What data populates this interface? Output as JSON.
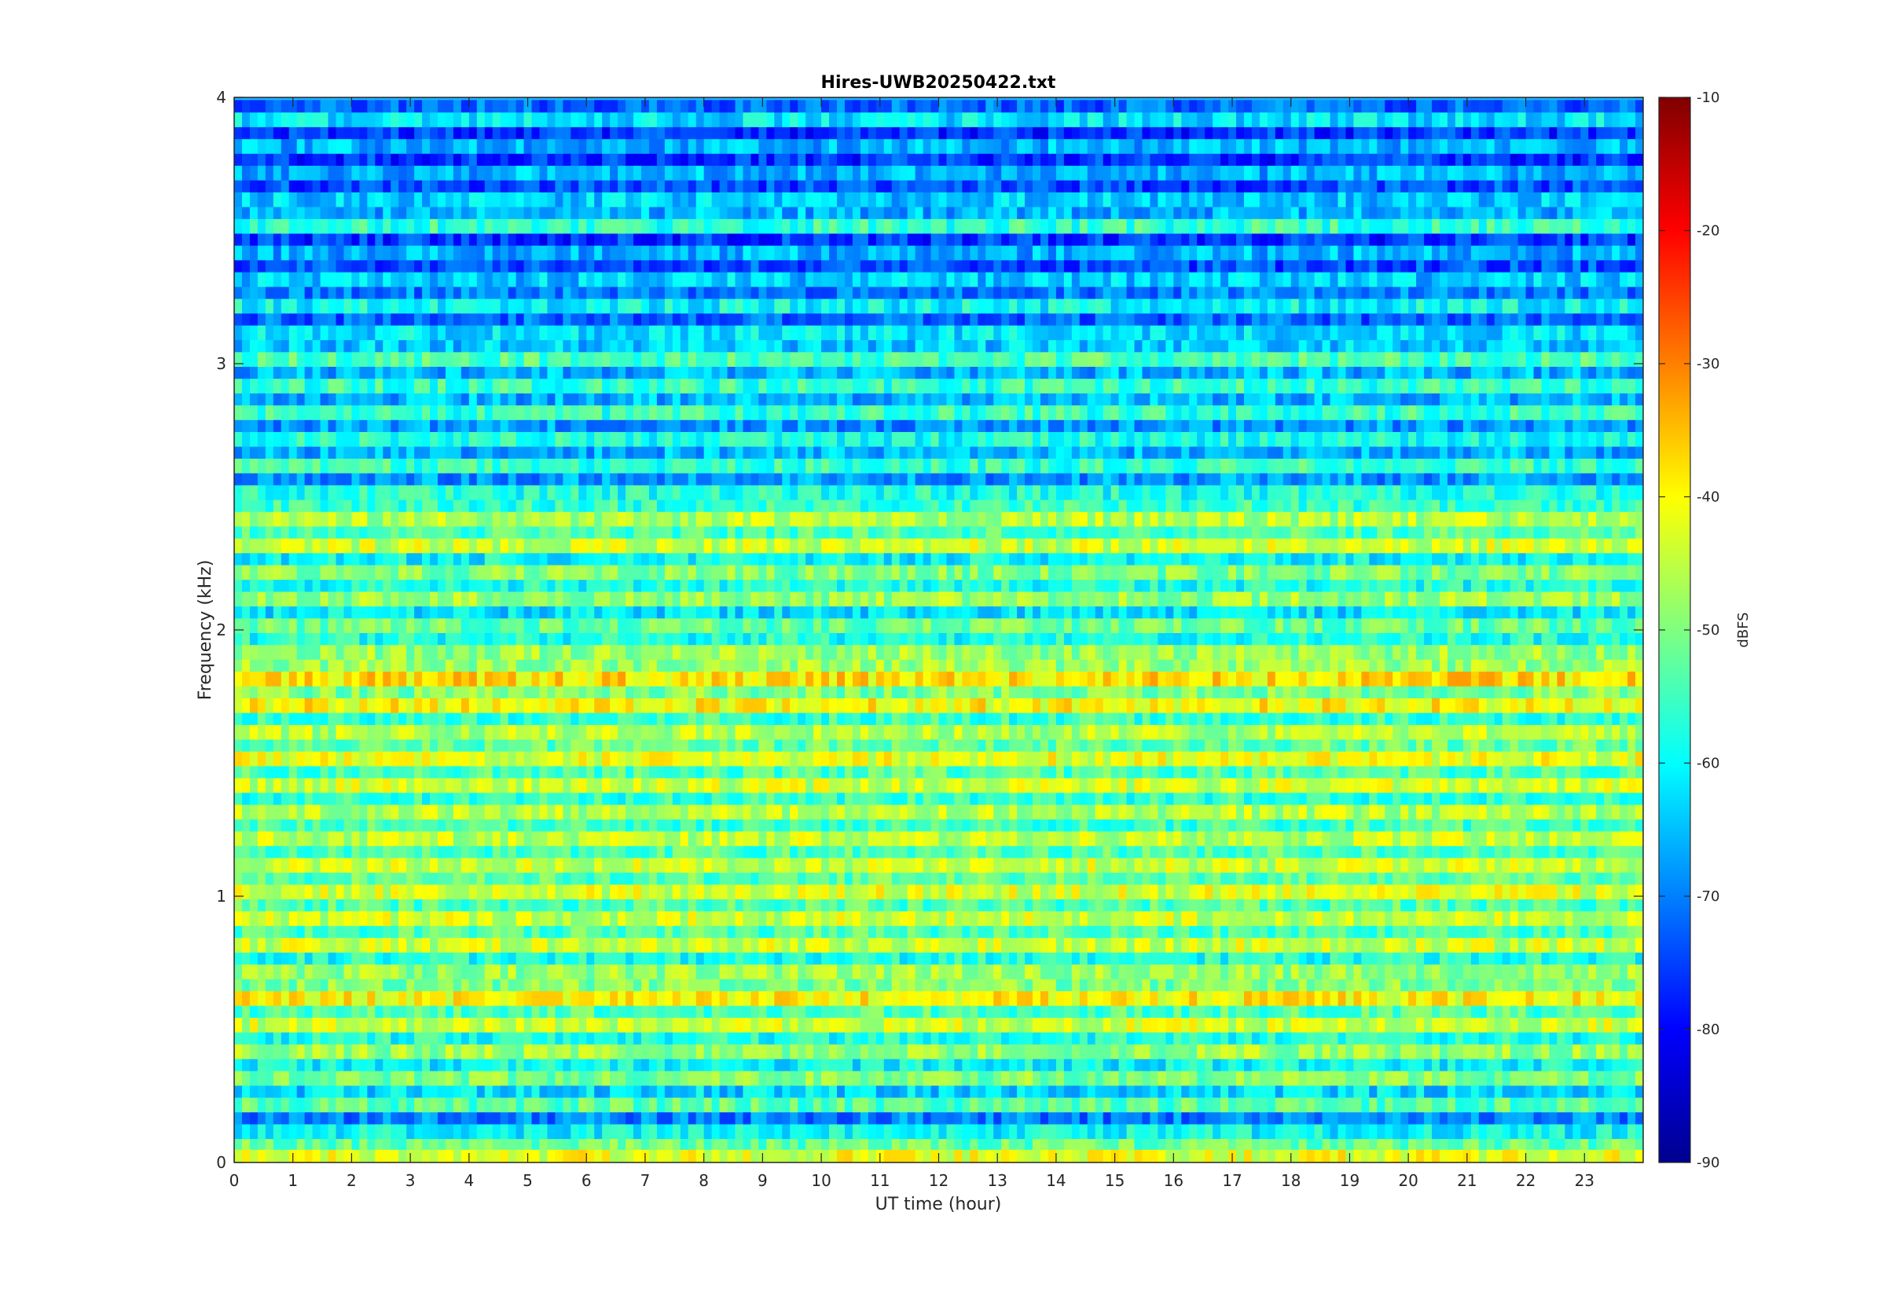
{
  "chart_data": {
    "type": "heatmap",
    "title": "Hires-UWB20250422.txt",
    "xlabel": "UT time (hour)",
    "ylabel": "Frequency (kHz)",
    "xlim": [
      0,
      24
    ],
    "ylim": [
      0,
      4
    ],
    "x_ticks": [
      0,
      1,
      2,
      3,
      4,
      5,
      6,
      7,
      8,
      9,
      10,
      11,
      12,
      13,
      14,
      15,
      16,
      17,
      18,
      19,
      20,
      21,
      22,
      23
    ],
    "y_ticks": [
      0,
      1,
      2,
      3,
      4
    ],
    "colorbar": {
      "label": "dBFS",
      "range": [
        -90,
        -10
      ],
      "ticks": [
        -90,
        -80,
        -70,
        -60,
        -50,
        -40,
        -30,
        -20,
        -10
      ],
      "colormap": "jet"
    },
    "bands": [
      {
        "f": 0.04,
        "level": -42
      },
      {
        "f": 0.14,
        "level": -60
      },
      {
        "f": 0.24,
        "level": -53
      },
      {
        "f": 0.34,
        "level": -50
      },
      {
        "f": 0.44,
        "level": -48
      },
      {
        "f": 0.54,
        "level": -44
      },
      {
        "f": 0.64,
        "level": -40
      },
      {
        "f": 0.74,
        "level": -48
      },
      {
        "f": 0.84,
        "level": -44
      },
      {
        "f": 0.94,
        "level": -44
      },
      {
        "f": 1.04,
        "level": -43
      },
      {
        "f": 1.14,
        "level": -44
      },
      {
        "f": 1.24,
        "level": -45
      },
      {
        "f": 1.34,
        "level": -46
      },
      {
        "f": 1.44,
        "level": -44
      },
      {
        "f": 1.54,
        "level": -42
      },
      {
        "f": 1.64,
        "level": -46
      },
      {
        "f": 1.74,
        "level": -40
      },
      {
        "f": 1.84,
        "level": -38
      },
      {
        "f": 1.94,
        "level": -48
      },
      {
        "f": 2.04,
        "level": -52
      },
      {
        "f": 2.14,
        "level": -48
      },
      {
        "f": 2.24,
        "level": -50
      },
      {
        "f": 2.34,
        "level": -44
      },
      {
        "f": 2.44,
        "level": -46
      },
      {
        "f": 2.54,
        "level": -58
      },
      {
        "f": 2.64,
        "level": -56
      },
      {
        "f": 2.74,
        "level": -58
      },
      {
        "f": 2.84,
        "level": -56
      },
      {
        "f": 2.94,
        "level": -56
      },
      {
        "f": 3.04,
        "level": -54
      },
      {
        "f": 3.14,
        "level": -62
      },
      {
        "f": 3.24,
        "level": -60
      },
      {
        "f": 3.34,
        "level": -64
      },
      {
        "f": 3.44,
        "level": -66
      },
      {
        "f": 3.54,
        "level": -56
      },
      {
        "f": 3.64,
        "level": -64
      },
      {
        "f": 3.74,
        "level": -66
      },
      {
        "f": 3.84,
        "level": -66
      },
      {
        "f": 3.94,
        "level": -62
      }
    ]
  }
}
